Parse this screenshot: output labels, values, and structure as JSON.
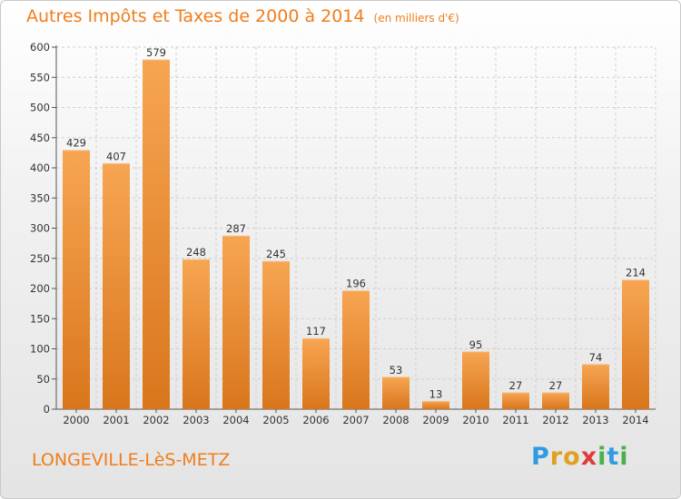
{
  "title": "Autres Impôts et Taxes de 2000 à 2014",
  "subtitle": "(en milliers d'€)",
  "town": "LONGEVILLE-LèS-METZ",
  "logo": {
    "letters": [
      "P",
      "r",
      "o",
      "x",
      "i",
      "t",
      "i"
    ],
    "colors": [
      "#2f9ce0",
      "#e0a020",
      "#e0a020",
      "#e03a3a",
      "#4bb04b",
      "#2f9ce0",
      "#4bb04b"
    ]
  },
  "colors": {
    "bar_light": "#f7a552",
    "bar_dark": "#d9761c",
    "accent": "#f07d1a"
  },
  "chart_data": {
    "type": "bar",
    "categories": [
      "2000",
      "2001",
      "2002",
      "2003",
      "2004",
      "2005",
      "2006",
      "2007",
      "2008",
      "2009",
      "2010",
      "2011",
      "2012",
      "2013",
      "2014"
    ],
    "values": [
      429,
      407,
      579,
      248,
      287,
      245,
      117,
      196,
      53,
      13,
      95,
      27,
      27,
      74,
      214
    ],
    "ylim": [
      0,
      600
    ],
    "yticks": [
      0,
      50,
      100,
      150,
      200,
      250,
      300,
      350,
      400,
      450,
      500,
      550,
      600
    ],
    "grid": true
  }
}
